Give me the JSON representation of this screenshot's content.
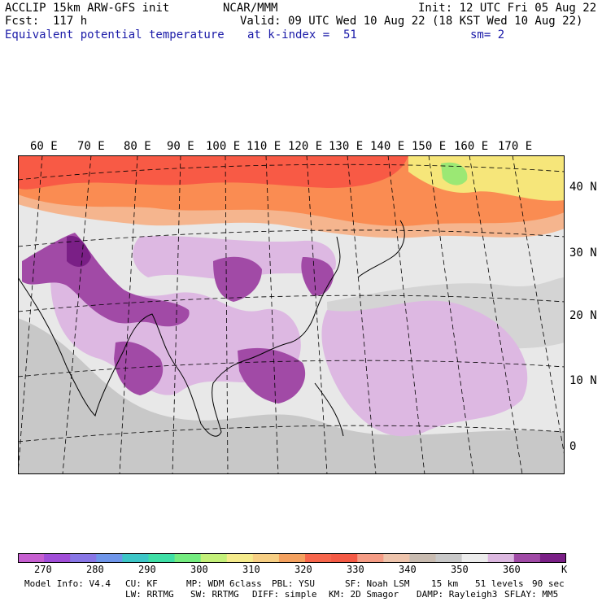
{
  "header": {
    "line1_left": "ACCLIP 15km ARW-GFS init",
    "line1_center": "NCAR/MMM",
    "line1_right": "Init: 12 UTC Fri 05 Aug 22",
    "line2_left": "Fcst:  117 h",
    "line2_right": "Valid: 09 UTC Wed 10 Aug 22 (18 KST Wed 10 Aug 22)",
    "line3_left": "Equivalent potential temperature",
    "line3_center": "at k-index =  51",
    "line3_right": "sm= 2",
    "title_color": "#1a1aa8"
  },
  "map": {
    "lon_labels": [
      "60 E",
      "70 E",
      "80 E",
      "90 E",
      "100 E",
      "110 E",
      "120 E",
      "130 E",
      "140 E",
      "150 E",
      "160 E",
      "170 E"
    ],
    "lat_labels": [
      "40 N",
      "30 N",
      "20 N",
      "10 N",
      "0"
    ],
    "frame_color": "#000000",
    "field_palette": {
      "hot_red": "#f85a45",
      "orange": "#fa8c52",
      "salmon": "#f5b58e",
      "gray": "#c8c8c8",
      "light_gray": "#e5e5e5",
      "lilac": "#ddb8e2",
      "purple": "#a14aa6",
      "dark_purple": "#7a1f86",
      "yellow": "#f6e67a",
      "lime": "#9be874"
    }
  },
  "colorbar": {
    "unit": "K",
    "colors": [
      "#c65fd0",
      "#a14ed8",
      "#8876e6",
      "#6f96ea",
      "#3dc6c7",
      "#3fdfa6",
      "#74ec80",
      "#c4f07a",
      "#f5eb8c",
      "#f7cf84",
      "#f4a15f",
      "#f7664c",
      "#f45a45",
      "#f59c85",
      "#eec4ac",
      "#c8bbb0",
      "#c8c8c8",
      "#ececec",
      "#dcb8e0",
      "#a04aa6",
      "#7a1f86"
    ],
    "ticks": [
      "270",
      "280",
      "290",
      "300",
      "310",
      "320",
      "330",
      "340",
      "350",
      "360"
    ]
  },
  "footer": {
    "model_info": "Model Info: V4.4",
    "cu": "CU: KF",
    "mp": "MP: WDM 6class",
    "pbl": "PBL: YSU",
    "sf": "SF: Noah LSM",
    "res": "15 km",
    "levels": "51 levels",
    "dt": "90 sec",
    "lw": "LW: RRTMG",
    "sw": "SW: RRTMG",
    "diff": "DIFF: simple",
    "km": "KM: 2D Smagor",
    "damp": "DAMP: Rayleigh3",
    "sflay": "SFLAY: MM5"
  }
}
